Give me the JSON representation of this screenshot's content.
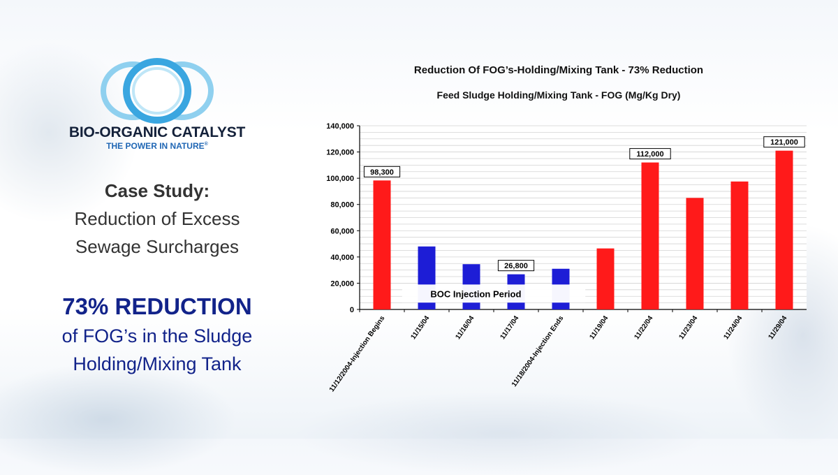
{
  "brand": {
    "name": "BIO-ORGANIC CATALYST",
    "tagline": "THE POWER IN NATURE",
    "trademark": "®"
  },
  "case_study": {
    "title": "Case Study:",
    "line1": "Reduction of Excess",
    "line2": "Sewage Surcharges"
  },
  "highlight": {
    "headline": "73% REDUCTION",
    "line1": "of FOG’s in the Sludge",
    "line2": "Holding/Mixing Tank"
  },
  "colors": {
    "navy": "#12238a",
    "red_bar": "#ff1a1a",
    "blue_bar": "#1d1dd6",
    "logo_blue": "#3aa6e0"
  },
  "chart_data": {
    "type": "bar",
    "title": "Reduction Of FOG’s-Holding/Mixing Tank - 73% Reduction",
    "subtitle": "Feed Sludge Holding/Mixing Tank - FOG (Mg/Kg Dry)",
    "categories": [
      "11/12/2004-Injection Begins",
      "11/15/04",
      "11/16/04",
      "11/17/04",
      "11/18/2004-Injection Ends",
      "11/19/04",
      "11/22/04",
      "11/23/04",
      "11/24/04",
      "11/29/04"
    ],
    "values": [
      98300,
      48000,
      34500,
      26800,
      31000,
      46500,
      112000,
      85000,
      97500,
      121000
    ],
    "bar_colors": [
      "red",
      "blue",
      "blue",
      "blue",
      "blue",
      "red",
      "red",
      "red",
      "red",
      "red"
    ],
    "data_labels": [
      {
        "index": 0,
        "text": "98,300"
      },
      {
        "index": 3,
        "text": "26,800"
      },
      {
        "index": 6,
        "text": "112,000"
      },
      {
        "index": 9,
        "text": "121,000"
      }
    ],
    "annotation": "BOC Injection Period",
    "ylim": [
      0,
      140000
    ],
    "yticks": [
      0,
      20000,
      40000,
      60000,
      80000,
      100000,
      120000,
      140000
    ],
    "ytick_labels": [
      "0",
      "20,000",
      "40,000",
      "60,000",
      "80,000",
      "100,000",
      "120,000",
      "140,000"
    ],
    "grid": true,
    "xlabel": "",
    "ylabel": ""
  }
}
